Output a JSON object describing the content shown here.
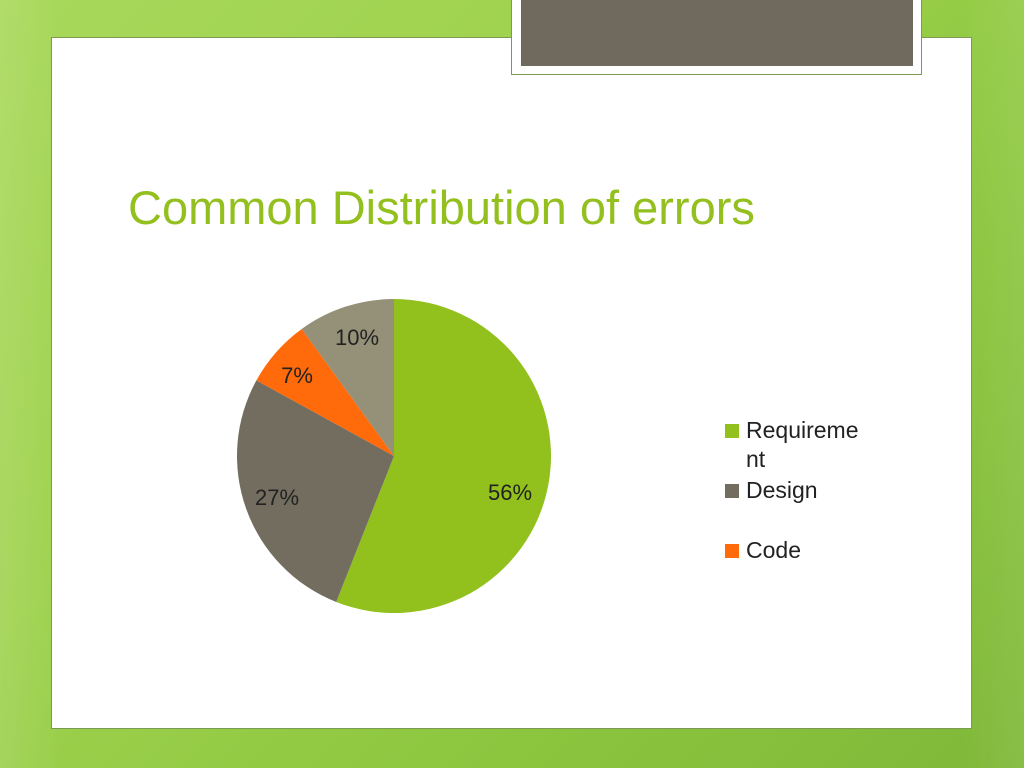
{
  "slide": {
    "title": "Common Distribution of errors"
  },
  "colors": {
    "background_green": "#9fd24e",
    "title_green": "#93c01f",
    "tab_fill": "#706a5e"
  },
  "chart_data": {
    "type": "pie",
    "title": "",
    "categories": [
      "Requirement",
      "Design",
      "Code",
      ""
    ],
    "values": [
      56,
      27,
      7,
      10
    ],
    "labels": [
      "56%",
      "27%",
      "7%",
      "10%"
    ],
    "colors": [
      "#92c01c",
      "#736d5f",
      "#ff6a0a",
      "#949178"
    ],
    "legend": {
      "position": "right",
      "entries": [
        {
          "label": "Requirement",
          "color": "#92c01c"
        },
        {
          "label": "Design",
          "color": "#736d5f"
        },
        {
          "label": "Code",
          "color": "#ff6a0a"
        }
      ]
    }
  }
}
